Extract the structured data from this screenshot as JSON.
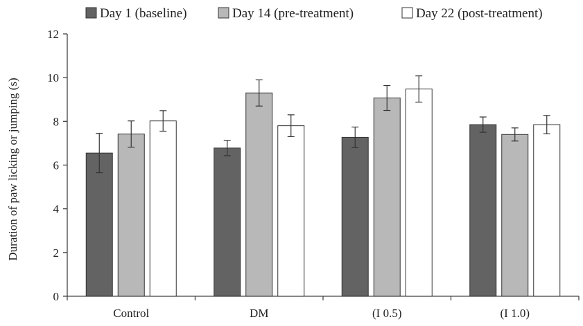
{
  "chart_data": {
    "type": "bar",
    "categories": [
      "Control",
      "DM",
      "(I 0.5)",
      "(I 1.0)"
    ],
    "series": [
      {
        "name": "Day 1 (baseline)",
        "color": "#636363",
        "values": [
          6.55,
          6.78,
          7.27,
          7.85
        ],
        "errors": [
          0.9,
          0.35,
          0.47,
          0.35
        ]
      },
      {
        "name": "Day 14 (pre-treatment)",
        "color": "#b8b8b8",
        "values": [
          7.42,
          9.3,
          9.07,
          7.4
        ],
        "errors": [
          0.6,
          0.6,
          0.57,
          0.3
        ]
      },
      {
        "name": "Day 22 (post-treatment)",
        "color": "#ffffff",
        "values": [
          8.02,
          7.8,
          9.48,
          7.85
        ],
        "errors": [
          0.47,
          0.5,
          0.6,
          0.42
        ]
      }
    ],
    "ylabel": "Duration of paw licking or jumping (s)",
    "xlabel": "",
    "ylim": [
      0,
      12
    ],
    "yticks": [
      0,
      2,
      4,
      6,
      8,
      10,
      12
    ],
    "grid": false,
    "legend_position": "top"
  }
}
